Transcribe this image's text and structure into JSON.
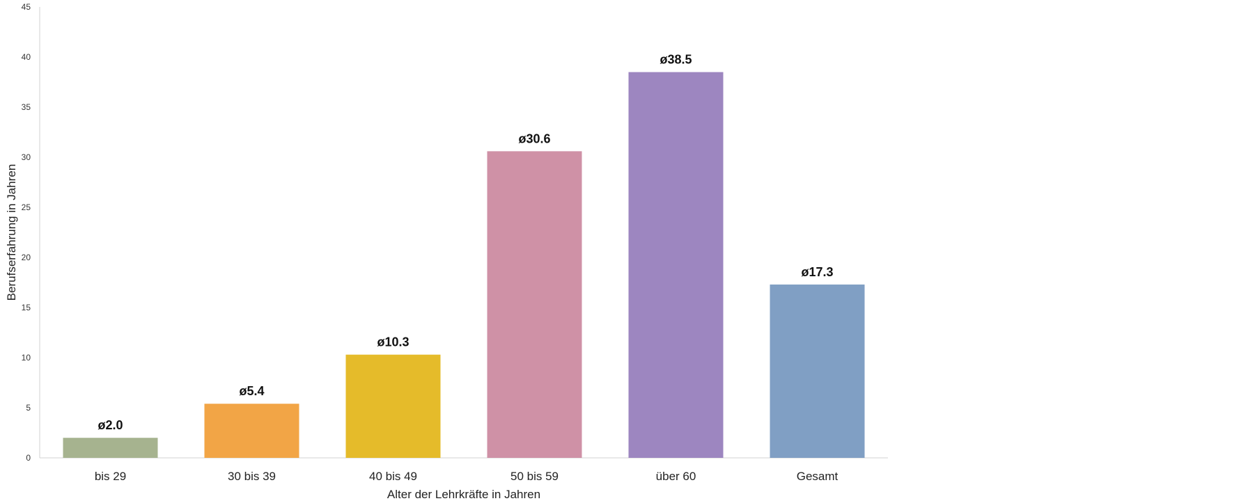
{
  "chart_data": {
    "type": "bar",
    "categories": [
      "bis 29",
      "30 bis 39",
      "40 bis 49",
      "50 bis 59",
      "über 60",
      "Gesamt"
    ],
    "values": [
      2.0,
      5.4,
      10.3,
      30.6,
      38.5,
      17.3
    ],
    "data_labels": [
      "ø2.0",
      "ø5.4",
      "ø10.3",
      "ø30.6",
      "ø38.5",
      "ø17.3"
    ],
    "colors": [
      "#a6b38f",
      "#f2a546",
      "#e5bb2a",
      "#cf91a6",
      "#9d86c0",
      "#809fc4"
    ],
    "xlabel": "Alter der Lehrkräfte in Jahren",
    "ylabel": "Berufserfahrung in Jahren",
    "ylim": [
      0,
      45
    ],
    "yticks": [
      0,
      5,
      10,
      15,
      20,
      25,
      30,
      35,
      40,
      45
    ],
    "grid": false,
    "legend": false
  }
}
